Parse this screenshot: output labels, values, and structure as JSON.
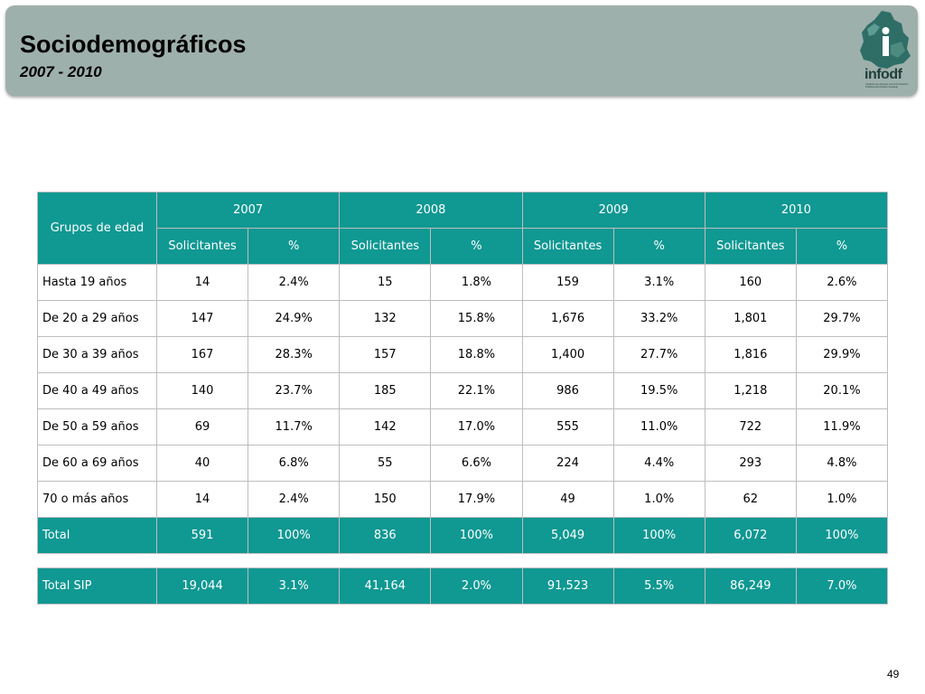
{
  "header": {
    "title": "Sociodemográficos",
    "subtitle": "2007 - 2010",
    "logo_text": "infodf",
    "logo_subtext": "Instituto de Acceso a la Información Pública del Distrito Federal"
  },
  "table": {
    "row_header_label": "Grupos de edad",
    "years": [
      "2007",
      "2008",
      "2009",
      "2010"
    ],
    "sub_headers": [
      "Solicitantes",
      "%"
    ],
    "rows": [
      {
        "label": "Hasta 19 años",
        "values": [
          "14",
          "2.4%",
          "15",
          "1.8%",
          "159",
          "3.1%",
          "160",
          "2.6%"
        ]
      },
      {
        "label": "De 20 a 29 años",
        "values": [
          "147",
          "24.9%",
          "132",
          "15.8%",
          "1,676",
          "33.2%",
          "1,801",
          "29.7%"
        ]
      },
      {
        "label": "De 30 a 39 años",
        "values": [
          "167",
          "28.3%",
          "157",
          "18.8%",
          "1,400",
          "27.7%",
          "1,816",
          "29.9%"
        ]
      },
      {
        "label": "De 40 a 49 años",
        "values": [
          "140",
          "23.7%",
          "185",
          "22.1%",
          "986",
          "19.5%",
          "1,218",
          "20.1%"
        ]
      },
      {
        "label": "De 50 a 59 años",
        "values": [
          "69",
          "11.7%",
          "142",
          "17.0%",
          "555",
          "11.0%",
          "722",
          "11.9%"
        ]
      },
      {
        "label": "De 60 a 69 años",
        "values": [
          "40",
          "6.8%",
          "55",
          "6.6%",
          "224",
          "4.4%",
          "293",
          "4.8%"
        ]
      },
      {
        "label": "70 o más años",
        "values": [
          "14",
          "2.4%",
          "150",
          "17.9%",
          "49",
          "1.0%",
          "62",
          "1.0%"
        ]
      }
    ],
    "total": {
      "label": "Total",
      "values": [
        "591",
        "100%",
        "836",
        "100%",
        "5,049",
        "100%",
        "6,072",
        "100%"
      ]
    }
  },
  "sip": {
    "label": "Total SIP",
    "values": [
      "19,044",
      "3.1%",
      "41,164",
      "2.0%",
      "91,523",
      "5.5%",
      "86,249",
      "7.0%"
    ]
  },
  "page_number": "49",
  "colors": {
    "header_bg": "#9eb0ab",
    "teal": "#109892",
    "logo": "#2e6e66"
  }
}
